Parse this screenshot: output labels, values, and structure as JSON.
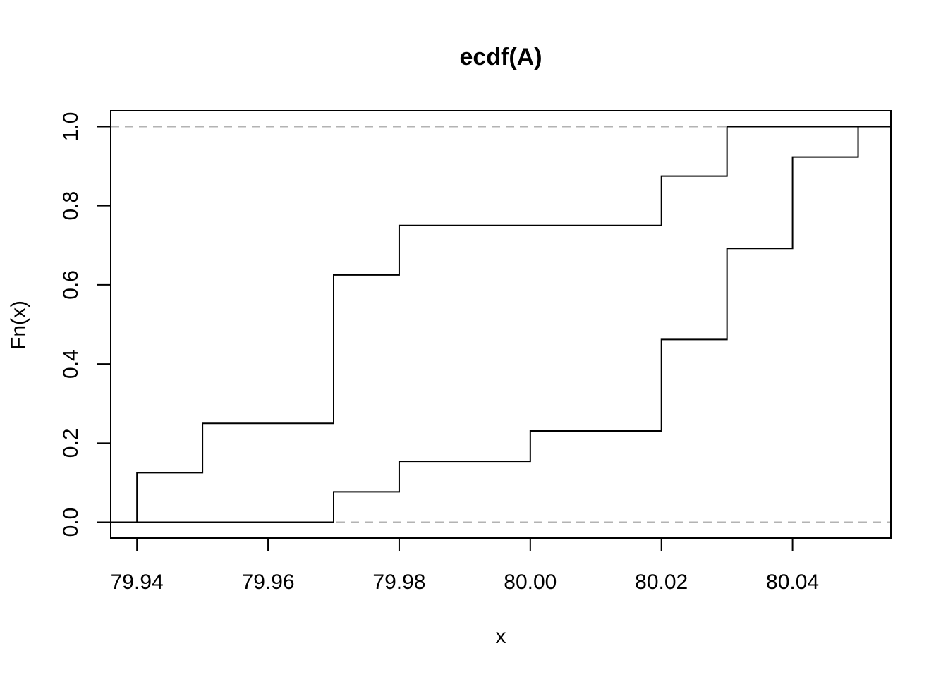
{
  "chart_data": {
    "type": "line",
    "title": "ecdf(A)",
    "xlabel": "x",
    "ylabel": "Fn(x)",
    "xlim": [
      79.936,
      80.055
    ],
    "ylim": [
      -0.04,
      1.04
    ],
    "x_ticks": [
      79.94,
      79.96,
      79.98,
      80.0,
      80.02,
      80.04
    ],
    "x_tick_labels": [
      "79.94",
      "79.96",
      "79.98",
      "80.00",
      "80.02",
      "80.04"
    ],
    "y_ticks": [
      0.0,
      0.2,
      0.4,
      0.6,
      0.8,
      1.0
    ],
    "y_tick_labels": [
      "0.0",
      "0.2",
      "0.4",
      "0.6",
      "0.8",
      "1.0"
    ],
    "reference_lines": [
      0,
      1
    ],
    "grid": false,
    "series": [
      {
        "x": [
          79.94,
          79.95,
          79.97,
          79.98,
          80.02,
          80.03
        ],
        "y": [
          0.125,
          0.25,
          0.625,
          0.75,
          0.875,
          1.0
        ]
      },
      {
        "x": [
          79.97,
          79.98,
          80.0,
          80.02,
          80.03,
          80.04,
          80.05
        ],
        "y": [
          0.077,
          0.154,
          0.231,
          0.462,
          0.692,
          0.923,
          1.0
        ]
      }
    ],
    "colors": {
      "line": "#000000",
      "reference": "#b3b3b3",
      "frame": "#000000"
    }
  }
}
